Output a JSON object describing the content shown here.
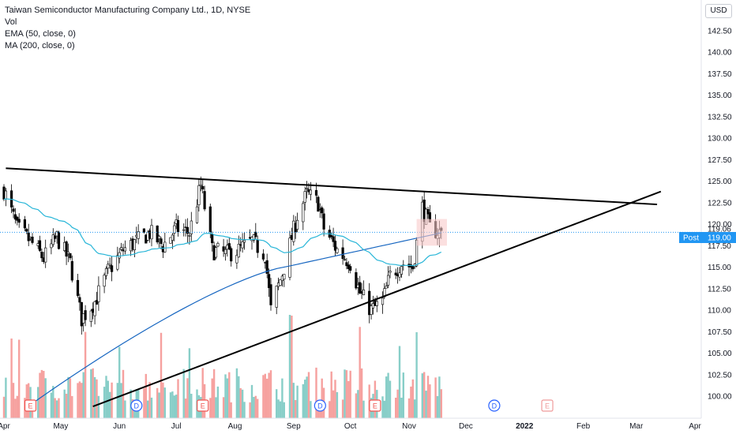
{
  "legend": {
    "title": "Taiwan Semiconductor Manufacturing Company Ltd., 1D, NYSE",
    "vol": "Vol",
    "ema": "EMA (50, close, 0)",
    "ma": "MA (200, close, 0)"
  },
  "currency": "USD",
  "price_badge": {
    "label": "Post",
    "value": "119.00",
    "color": "#2196f3"
  },
  "last_price_label": "119.06",
  "colors": {
    "up": "#26a69a",
    "down": "#ef5350",
    "candle": "#000000",
    "ema": "#29b6d8",
    "ma": "#1565c0",
    "trend": "#000000",
    "box": "#f8c9c9"
  },
  "chart_data": {
    "type": "candlestick",
    "title": "Taiwan Semiconductor Manufacturing Company Ltd., 1D, NYSE",
    "y_ticks": [
      100.0,
      102.5,
      105.0,
      107.5,
      110.0,
      112.5,
      115.0,
      117.5,
      120.0,
      122.5,
      125.0,
      127.5,
      130.0,
      132.5,
      135.0,
      137.5,
      140.0,
      142.5
    ],
    "y_tick_labels": [
      "100.00",
      "102.50",
      "105.00",
      "107.50",
      "110.00",
      "112.50",
      "115.00",
      "117.50",
      "120.00",
      "122.50",
      "125.00",
      "127.50",
      "130.00",
      "132.50",
      "135.00",
      "137.50",
      "140.00",
      "142.50"
    ],
    "x_ticks": [
      {
        "label": "Apr",
        "bold": false
      },
      {
        "label": "May",
        "bold": false
      },
      {
        "label": "Jun",
        "bold": false
      },
      {
        "label": "Jul",
        "bold": false
      },
      {
        "label": "Aug",
        "bold": false
      },
      {
        "label": "Sep",
        "bold": false
      },
      {
        "label": "Oct",
        "bold": false
      },
      {
        "label": "Nov",
        "bold": false
      },
      {
        "label": "Dec",
        "bold": false
      },
      {
        "label": "2022",
        "bold": true
      },
      {
        "label": "Feb",
        "bold": false
      },
      {
        "label": "Mar",
        "bold": false
      },
      {
        "label": "Apr",
        "bold": false
      }
    ],
    "key_points": [
      {
        "date": "2021-04-01",
        "close": 124.0
      },
      {
        "date": "2021-04-08",
        "close": 119.5
      },
      {
        "date": "2021-04-15",
        "close": 118.0
      },
      {
        "date": "2021-04-22",
        "close": 116.0
      },
      {
        "date": "2021-04-29",
        "close": 118.5
      },
      {
        "date": "2021-05-06",
        "close": 115.5
      },
      {
        "date": "2021-05-12",
        "close": 109.0
      },
      {
        "date": "2021-05-19",
        "close": 111.0
      },
      {
        "date": "2021-05-26",
        "close": 114.5
      },
      {
        "date": "2021-06-03",
        "close": 117.0
      },
      {
        "date": "2021-06-10",
        "close": 118.0
      },
      {
        "date": "2021-06-17",
        "close": 119.0
      },
      {
        "date": "2021-06-24",
        "close": 117.5
      },
      {
        "date": "2021-07-01",
        "close": 119.5
      },
      {
        "date": "2021-07-08",
        "close": 119.0
      },
      {
        "date": "2021-07-14",
        "close": 124.5
      },
      {
        "date": "2021-07-20",
        "close": 117.0
      },
      {
        "date": "2021-07-27",
        "close": 116.5
      },
      {
        "date": "2021-08-03",
        "close": 117.0
      },
      {
        "date": "2021-08-10",
        "close": 118.0
      },
      {
        "date": "2021-08-17",
        "close": 116.5
      },
      {
        "date": "2021-08-20",
        "close": 110.0
      },
      {
        "date": "2021-08-27",
        "close": 115.0
      },
      {
        "date": "2021-09-03",
        "close": 121.0
      },
      {
        "date": "2021-09-08",
        "close": 123.5
      },
      {
        "date": "2021-09-14",
        "close": 122.5
      },
      {
        "date": "2021-09-17",
        "close": 119.5
      },
      {
        "date": "2021-09-24",
        "close": 117.0
      },
      {
        "date": "2021-10-01",
        "close": 115.5
      },
      {
        "date": "2021-10-06",
        "close": 112.0
      },
      {
        "date": "2021-10-12",
        "close": 110.0
      },
      {
        "date": "2021-10-18",
        "close": 111.0
      },
      {
        "date": "2021-10-22",
        "close": 114.0
      },
      {
        "date": "2021-10-28",
        "close": 115.5
      },
      {
        "date": "2021-11-03",
        "close": 115.0
      },
      {
        "date": "2021-11-08",
        "close": 122.0
      },
      {
        "date": "2021-11-12",
        "close": 119.5
      },
      {
        "date": "2021-11-18",
        "close": 119.0
      }
    ],
    "ylim": [
      99.0,
      144.0
    ],
    "grid": false,
    "overlays": [
      "EMA (50, close, 0)",
      "MA (200, close, 0)"
    ],
    "last_price": 119.06,
    "post_price": 119.0,
    "event_markers": [
      {
        "date": "2021-04-15",
        "type": "E"
      },
      {
        "date": "2021-06-10",
        "type": "D"
      },
      {
        "date": "2021-07-15",
        "type": "E"
      },
      {
        "date": "2021-09-15",
        "type": "D"
      },
      {
        "date": "2021-10-14",
        "type": "E"
      },
      {
        "date": "2021-12-16",
        "type": "D"
      },
      {
        "date": "2022-01-13",
        "type": "E"
      }
    ]
  }
}
